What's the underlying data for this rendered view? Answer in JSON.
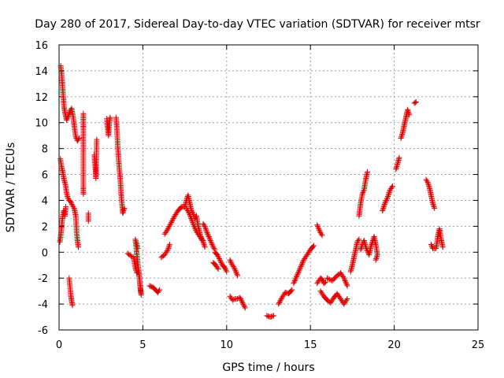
{
  "chart_data": {
    "type": "scatter",
    "title": "Day 280 of 2017, Sidereal Day-to-day VTEC variation (SDTVAR) for receiver mtsr",
    "xlabel": "GPS time / hours",
    "ylabel": "SDTVAR / TECUs",
    "xlim": [
      0,
      25
    ],
    "ylim": [
      -6,
      16
    ],
    "xticks": [
      0,
      5,
      10,
      15,
      20,
      25
    ],
    "yticks": [
      -6,
      -4,
      -2,
      0,
      2,
      4,
      6,
      8,
      10,
      12,
      14,
      16
    ],
    "grid": true,
    "marker": "+",
    "color": "#e00000",
    "segments": [
      [
        [
          0.05,
          0.8
        ],
        [
          0.12,
          1.5
        ],
        [
          0.2,
          2.6
        ],
        [
          0.28,
          3.2
        ],
        [
          0.35,
          2.8
        ],
        [
          0.4,
          3.5
        ]
      ],
      [
        [
          0.08,
          7.2
        ],
        [
          0.15,
          6.6
        ],
        [
          0.22,
          6.2
        ],
        [
          0.3,
          5.6
        ],
        [
          0.38,
          5.2
        ],
        [
          0.45,
          4.6
        ],
        [
          0.52,
          4.2
        ],
        [
          0.6,
          4.0
        ],
        [
          0.7,
          3.9
        ],
        [
          0.8,
          3.6
        ],
        [
          0.9,
          3.4
        ],
        [
          1.0,
          2.8
        ],
        [
          1.05,
          1.5
        ],
        [
          1.1,
          0.9
        ],
        [
          1.15,
          0.4
        ]
      ],
      [
        [
          0.1,
          14.4
        ],
        [
          0.15,
          13.8
        ],
        [
          0.2,
          13.0
        ],
        [
          0.25,
          12.0
        ],
        [
          0.3,
          11.2
        ],
        [
          0.38,
          10.6
        ],
        [
          0.45,
          10.2
        ],
        [
          0.55,
          10.5
        ],
        [
          0.65,
          10.9
        ],
        [
          0.75,
          11.1
        ],
        [
          0.85,
          10.4
        ],
        [
          0.92,
          9.6
        ],
        [
          1.0,
          8.9
        ],
        [
          1.1,
          8.6
        ],
        [
          1.2,
          8.8
        ]
      ],
      [
        [
          0.6,
          -2.0
        ],
        [
          0.65,
          -2.6
        ],
        [
          0.7,
          -3.3
        ],
        [
          0.75,
          -3.8
        ],
        [
          0.8,
          -4.1
        ]
      ],
      [
        [
          1.45,
          10.7
        ],
        [
          1.45,
          9.6
        ],
        [
          1.45,
          5.0
        ],
        [
          1.45,
          4.5
        ]
      ],
      [
        [
          1.75,
          3.0
        ],
        [
          1.75,
          2.4
        ]
      ],
      [
        [
          2.1,
          7.5
        ],
        [
          2.15,
          6.8
        ],
        [
          2.2,
          5.7
        ],
        [
          2.25,
          8.7
        ]
      ],
      [
        [
          2.85,
          10.3
        ],
        [
          2.9,
          9.6
        ],
        [
          2.95,
          9.0
        ],
        [
          3.0,
          10.0
        ],
        [
          3.05,
          10.4
        ]
      ],
      [
        [
          3.4,
          10.4
        ],
        [
          3.45,
          9.6
        ],
        [
          3.5,
          8.2
        ],
        [
          3.55,
          7.3
        ],
        [
          3.6,
          6.4
        ],
        [
          3.65,
          5.7
        ],
        [
          3.7,
          4.6
        ],
        [
          3.75,
          3.8
        ],
        [
          3.8,
          3.0
        ],
        [
          3.9,
          3.4
        ]
      ],
      [
        [
          4.1,
          -0.1
        ],
        [
          4.3,
          -0.3
        ],
        [
          4.45,
          -0.4
        ],
        [
          4.55,
          -1.2
        ],
        [
          4.65,
          -1.6
        ],
        [
          4.75,
          -1.4
        ],
        [
          4.8,
          -2.0
        ],
        [
          4.85,
          -2.8
        ],
        [
          4.9,
          -3.3
        ],
        [
          4.55,
          1.0
        ],
        [
          4.7,
          0.3
        ]
      ],
      [
        [
          5.4,
          -2.6
        ],
        [
          5.6,
          -2.7
        ],
        [
          5.75,
          -2.9
        ],
        [
          5.9,
          -3.1
        ],
        [
          6.0,
          -2.9
        ]
      ],
      [
        [
          6.1,
          -0.4
        ],
        [
          6.3,
          -0.2
        ],
        [
          6.5,
          0.2
        ],
        [
          6.6,
          0.6
        ]
      ],
      [
        [
          6.3,
          1.4
        ],
        [
          6.5,
          1.8
        ],
        [
          6.7,
          2.3
        ],
        [
          6.9,
          2.8
        ],
        [
          7.1,
          3.2
        ],
        [
          7.3,
          3.5
        ],
        [
          7.5,
          3.5
        ],
        [
          7.6,
          4.0
        ],
        [
          7.7,
          4.4
        ],
        [
          7.8,
          3.8
        ],
        [
          7.9,
          3.2
        ],
        [
          8.0,
          3.0
        ],
        [
          8.1,
          2.6
        ],
        [
          8.2,
          2.8
        ],
        [
          8.3,
          2.0
        ],
        [
          8.4,
          1.5
        ],
        [
          8.5,
          1.0
        ],
        [
          8.6,
          0.8
        ],
        [
          8.7,
          0.4
        ]
      ],
      [
        [
          7.6,
          3.4
        ],
        [
          7.8,
          2.9
        ],
        [
          8.0,
          2.2
        ],
        [
          8.2,
          1.6
        ],
        [
          8.4,
          1.2
        ],
        [
          8.6,
          0.9
        ]
      ],
      [
        [
          8.6,
          2.2
        ],
        [
          8.7,
          2.0
        ],
        [
          8.8,
          1.6
        ],
        [
          8.9,
          1.3
        ],
        [
          9.0,
          1.0
        ],
        [
          9.1,
          0.7
        ],
        [
          9.2,
          0.4
        ],
        [
          9.3,
          0.2
        ]
      ],
      [
        [
          9.3,
          0.0
        ],
        [
          9.45,
          -0.2
        ],
        [
          9.6,
          -0.6
        ],
        [
          9.75,
          -1.0
        ],
        [
          9.9,
          -1.2
        ],
        [
          10.0,
          -1.5
        ]
      ],
      [
        [
          9.2,
          -0.8
        ],
        [
          9.35,
          -1.0
        ],
        [
          9.5,
          -1.3
        ]
      ],
      [
        [
          10.2,
          -0.6
        ],
        [
          10.3,
          -0.9
        ],
        [
          10.45,
          -1.2
        ],
        [
          10.55,
          -1.5
        ],
        [
          10.65,
          -1.8
        ]
      ],
      [
        [
          10.2,
          -3.4
        ],
        [
          10.35,
          -3.7
        ],
        [
          10.5,
          -3.6
        ],
        [
          10.65,
          -3.6
        ],
        [
          10.8,
          -3.5
        ],
        [
          11.1,
          -4.3
        ]
      ],
      [
        [
          12.4,
          -4.9
        ],
        [
          12.6,
          -5.0
        ],
        [
          12.8,
          -4.9
        ]
      ],
      [
        [
          13.1,
          -4.0
        ],
        [
          13.3,
          -3.5
        ],
        [
          13.5,
          -3.1
        ],
        [
          13.7,
          -3.2
        ],
        [
          13.9,
          -2.9
        ]
      ],
      [
        [
          14.0,
          -2.4
        ],
        [
          14.2,
          -1.8
        ],
        [
          14.4,
          -1.2
        ],
        [
          14.6,
          -0.6
        ],
        [
          14.8,
          -0.2
        ],
        [
          15.0,
          0.2
        ],
        [
          15.2,
          0.5
        ]
      ],
      [
        [
          15.4,
          2.1
        ],
        [
          15.5,
          1.8
        ],
        [
          15.6,
          1.5
        ],
        [
          15.7,
          1.3
        ]
      ],
      [
        [
          15.4,
          -2.4
        ],
        [
          15.5,
          -2.2
        ],
        [
          15.6,
          -2.0
        ],
        [
          15.7,
          -2.1
        ],
        [
          15.8,
          -2.4
        ],
        [
          15.9,
          -2.3
        ]
      ],
      [
        [
          15.6,
          -3.0
        ],
        [
          15.8,
          -3.4
        ],
        [
          16.0,
          -3.7
        ],
        [
          16.2,
          -3.9
        ],
        [
          16.4,
          -3.5
        ],
        [
          16.6,
          -3.2
        ],
        [
          16.8,
          -3.6
        ],
        [
          17.0,
          -4.0
        ],
        [
          17.2,
          -3.6
        ]
      ],
      [
        [
          16.0,
          -2.0
        ],
        [
          16.3,
          -2.2
        ],
        [
          16.6,
          -1.8
        ],
        [
          16.8,
          -1.6
        ],
        [
          17.0,
          -2.0
        ],
        [
          17.2,
          -2.6
        ]
      ],
      [
        [
          17.4,
          -1.5
        ],
        [
          17.5,
          -1.0
        ],
        [
          17.6,
          -0.4
        ],
        [
          17.7,
          0.2
        ],
        [
          17.8,
          0.8
        ],
        [
          17.9,
          1.0
        ]
      ],
      [
        [
          17.9,
          2.8
        ],
        [
          18.0,
          3.8
        ],
        [
          18.1,
          4.5
        ],
        [
          18.2,
          4.8
        ],
        [
          18.3,
          5.6
        ],
        [
          18.4,
          6.2
        ]
      ],
      [
        [
          18.0,
          0.2
        ],
        [
          18.1,
          0.6
        ],
        [
          18.2,
          0.9
        ],
        [
          18.3,
          0.4
        ],
        [
          18.4,
          0.1
        ],
        [
          18.5,
          -0.2
        ],
        [
          18.6,
          0.4
        ],
        [
          18.7,
          0.8
        ],
        [
          18.8,
          1.2
        ],
        [
          18.9,
          0.6
        ],
        [
          19.0,
          -0.2
        ],
        [
          18.9,
          -0.6
        ]
      ],
      [
        [
          19.3,
          3.2
        ],
        [
          19.45,
          3.8
        ],
        [
          19.6,
          4.2
        ],
        [
          19.75,
          4.8
        ],
        [
          19.9,
          5.1
        ]
      ],
      [
        [
          20.1,
          6.4
        ],
        [
          20.2,
          6.8
        ],
        [
          20.3,
          7.3
        ]
      ],
      [
        [
          20.4,
          8.8
        ],
        [
          20.5,
          9.2
        ],
        [
          20.6,
          9.8
        ],
        [
          20.7,
          10.4
        ],
        [
          20.8,
          11.0
        ],
        [
          20.9,
          10.6
        ]
      ],
      [
        [
          21.2,
          11.5
        ],
        [
          21.3,
          11.6
        ]
      ],
      [
        [
          21.9,
          5.6
        ],
        [
          22.0,
          5.4
        ],
        [
          22.1,
          5.0
        ],
        [
          22.2,
          4.4
        ],
        [
          22.3,
          3.8
        ],
        [
          22.4,
          3.4
        ]
      ],
      [
        [
          22.2,
          0.6
        ],
        [
          22.3,
          0.3
        ],
        [
          22.5,
          0.3
        ],
        [
          22.6,
          1.2
        ],
        [
          22.7,
          1.8
        ],
        [
          22.8,
          1.0
        ],
        [
          22.9,
          0.4
        ]
      ]
    ]
  }
}
